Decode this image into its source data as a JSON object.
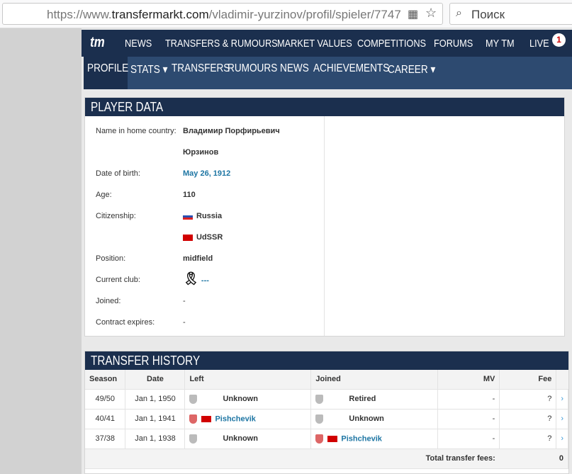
{
  "browser": {
    "url_prefix": "https://www.",
    "url_domain": "transfermarkt.com",
    "url_path": "/vladimir-yurzinov/profil/spieler/7747",
    "search_placeholder": "Поиск"
  },
  "nav": {
    "logo": "tm",
    "items": [
      "NEWS",
      "TRANSFERS & RUMOURS",
      "MARKET VALUES",
      "COMPETITIONS",
      "FORUMS",
      "MY TM",
      "LIVE"
    ],
    "live_badge": "1"
  },
  "subnav": {
    "items": [
      "PROFILE",
      "STATS ▾",
      "TRANSFERS",
      "RUMOURS",
      "NEWS",
      "ACHIEVEMENTS",
      "CAREER ▾"
    ],
    "active": "PROFILE"
  },
  "player_data": {
    "title": "PLAYER DATA",
    "rows": [
      {
        "label": "Name in home country:",
        "value": "Владимир Порфирьевич"
      },
      {
        "label": "",
        "value": "Юрзинов"
      },
      {
        "label": "Date of birth:",
        "value": "May 26, 1912"
      },
      {
        "label": "Age:",
        "value": "110"
      },
      {
        "label": "Citizenship:",
        "value": "Russia"
      },
      {
        "label": "",
        "value": "UdSSR"
      },
      {
        "label": "Position:",
        "value": "midfield"
      },
      {
        "label": "Current club:",
        "value": "---"
      },
      {
        "label": "Joined:",
        "value": "-"
      },
      {
        "label": "Contract expires:",
        "value": "-"
      }
    ]
  },
  "transfer_history": {
    "title": "TRANSFER HISTORY",
    "headers": [
      "Season",
      "Date",
      "Left",
      "Joined",
      "MV",
      "Fee"
    ],
    "rows": [
      {
        "season": "49/50",
        "date": "Jan 1, 1950",
        "left": "Unknown",
        "joined": "Retired",
        "mv": "-",
        "fee": "?"
      },
      {
        "season": "40/41",
        "date": "Jan 1, 1941",
        "left": "Pishchevik",
        "joined": "Unknown",
        "mv": "-",
        "fee": "?"
      },
      {
        "season": "37/38",
        "date": "Jan 1, 1938",
        "left": "Unknown",
        "joined": "Pishchevik",
        "mv": "-",
        "fee": "?"
      }
    ],
    "total_label": "Total transfer fees:",
    "total_value": "0"
  }
}
